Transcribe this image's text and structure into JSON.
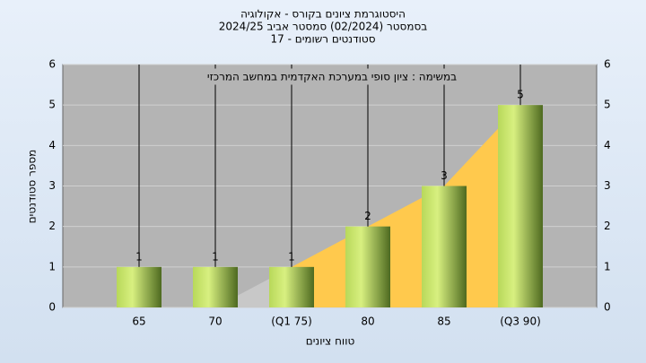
{
  "chart_data": {
    "type": "bar",
    "title": "היסטוגרמת ציונים בקורס - אקולוגיה",
    "subtitle": "בסמסטר  (02/2024)  סמסטר אביב 2024/25",
    "subtitle2": "סטודנטים רשומים - 17",
    "annotation": "במשימה : ציון סופי במערכת האקדמית במחשב המרכזי",
    "x_label": "טווח ציונים",
    "y_label": "מספר סטודנטים",
    "categories": [
      "65",
      "70",
      "(Q1 75)",
      "80",
      "85",
      "(Q3 90)"
    ],
    "values": [
      1,
      1,
      1,
      2,
      3,
      5
    ],
    "color": "#8fb03c",
    "areas": [
      {
        "color": "#c8c8c8",
        "values": [
          null,
          0,
          1,
          null,
          null,
          null
        ]
      },
      {
        "color": "#ffc94d",
        "values": [
          null,
          null,
          1,
          2,
          3,
          5
        ]
      }
    ],
    "ylim": [
      0,
      6
    ],
    "yticks": [
      0,
      1,
      2,
      3,
      4,
      5,
      6
    ],
    "grid": true
  }
}
